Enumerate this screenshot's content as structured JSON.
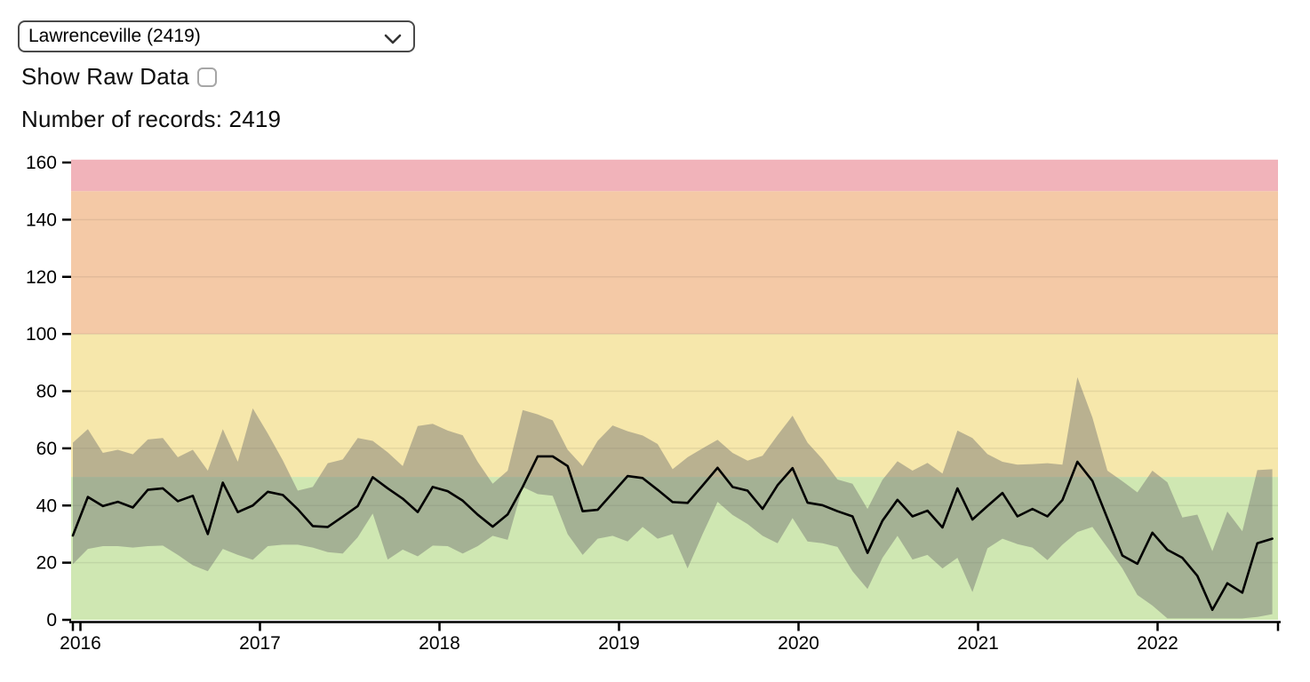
{
  "controls": {
    "region_select": {
      "value": "Lawrenceville (2419)"
    },
    "show_raw_data_label": "Show Raw Data",
    "show_raw_data_checked": false,
    "records_label": "Number of records: 2419"
  },
  "chart_data": {
    "type": "line",
    "title": "",
    "xlabel": "",
    "ylabel": "",
    "ylim": [
      0,
      160
    ],
    "y_ticks": [
      0,
      20,
      40,
      60,
      80,
      100,
      120,
      140,
      160
    ],
    "x_tick_labels": [
      "2016",
      "2017",
      "2018",
      "2019",
      "2020",
      "2021",
      "2022"
    ],
    "x": {
      "start_month": "2016-01",
      "end_month": "2022-09",
      "frequency": "monthly",
      "n_points": 81
    },
    "grid": "subtle horizontal lines every 20 units",
    "legend": "none",
    "bands": [
      {
        "name": "band-0-50",
        "from": 0,
        "to": 50,
        "color": "#cfe7b2"
      },
      {
        "name": "band-50-100",
        "from": 50,
        "to": 100,
        "color": "#f6e7ab"
      },
      {
        "name": "band-100-150",
        "from": 100,
        "to": 150,
        "color": "#f4c9a6"
      },
      {
        "name": "band-150-160",
        "from": 150,
        "to": 161,
        "color": "#f1b3ba"
      }
    ],
    "band_fill": "rgba(110,110,110,0.45)",
    "line_color": "#000000",
    "series": [
      {
        "name": "monthly-mean",
        "values_by_year": [
          [
            29.5,
            43.0,
            39.8,
            41.3,
            39.3,
            45.5,
            46.0,
            41.5,
            43.4,
            30.0,
            48.0,
            37.7
          ],
          [
            40.0,
            44.8,
            43.7,
            38.7,
            32.8,
            32.5,
            36.1,
            39.8,
            49.9,
            46.0,
            42.4,
            37.7
          ],
          [
            46.5,
            45.0,
            41.7,
            36.8,
            32.6,
            36.9,
            46.5,
            57.2,
            57.2,
            53.8,
            38.0,
            38.5
          ],
          [
            44.4,
            50.3,
            49.6,
            45.5,
            41.2,
            40.9,
            47.0,
            53.2,
            46.5,
            45.2,
            38.8,
            47.1
          ],
          [
            53.1,
            41.0,
            40.1,
            38.0,
            36.2,
            23.4,
            34.7,
            42.0,
            36.2,
            38.2,
            32.3,
            46.0
          ],
          [
            35.1,
            39.8,
            44.4,
            36.2,
            38.8,
            36.2,
            41.9,
            55.3,
            48.6,
            35.5,
            22.5,
            19.6
          ],
          [
            30.5,
            24.5,
            21.7,
            15.4,
            3.5,
            12.8,
            9.5,
            26.8,
            28.4
          ]
        ]
      },
      {
        "name": "uncertainty-upper",
        "values_by_year": [
          [
            62.0,
            66.7,
            58.4,
            59.5,
            57.9,
            63.1,
            63.6,
            56.9,
            59.5,
            52.2,
            66.7,
            55.3
          ],
          [
            74.0,
            65.2,
            55.8,
            45.2,
            46.5,
            54.8,
            56.1,
            63.6,
            62.6,
            58.6,
            53.8,
            67.8
          ],
          [
            68.6,
            66.2,
            64.6,
            55.3,
            47.6,
            52.2,
            73.4,
            71.9,
            69.8,
            59.5,
            53.8,
            62.6
          ],
          [
            68.0,
            66.0,
            64.5,
            61.5,
            52.7,
            56.9,
            60.0,
            63.0,
            58.4,
            55.7,
            57.4,
            64.6
          ],
          [
            71.4,
            62.0,
            56.2,
            49.1,
            47.6,
            38.8,
            49.0,
            55.5,
            52.2,
            54.9,
            51.2,
            66.2
          ],
          [
            63.6,
            58.0,
            55.3,
            54.3,
            54.5,
            54.8,
            54.3,
            84.9,
            70.8,
            52.2,
            48.5,
            44.6
          ],
          [
            52.2,
            48.1,
            35.8,
            36.8,
            24.0,
            37.9,
            31.0,
            52.4,
            52.7
          ]
        ]
      },
      {
        "name": "uncertainty-lower",
        "values_by_year": [
          [
            19.5,
            24.8,
            25.8,
            25.8,
            25.3,
            25.8,
            26.0,
            22.7,
            19.1,
            17.0,
            24.8,
            22.7
          ],
          [
            21.0,
            25.8,
            26.3,
            26.3,
            25.3,
            23.7,
            23.2,
            28.9,
            37.2,
            21.1,
            24.6,
            22.2
          ],
          [
            26.0,
            25.8,
            23.2,
            25.8,
            29.4,
            28.0,
            46.5,
            44.0,
            43.4,
            30.0,
            22.7,
            28.4
          ],
          [
            29.4,
            27.4,
            32.5,
            28.4,
            30.0,
            18.0,
            30.0,
            41.3,
            36.7,
            33.5,
            29.4,
            26.8
          ],
          [
            35.6,
            27.4,
            26.8,
            25.5,
            17.0,
            10.8,
            21.7,
            29.4,
            21.1,
            22.7,
            18.0,
            21.7
          ],
          [
            9.7,
            25.0,
            28.4,
            26.5,
            25.3,
            20.9,
            26.3,
            30.7,
            32.5,
            25.3,
            18.0,
            8.7
          ],
          [
            5.0,
            0.5,
            0.5,
            0.5,
            0.5,
            0.5,
            0.5,
            1.0,
            2.0
          ]
        ]
      }
    ]
  }
}
